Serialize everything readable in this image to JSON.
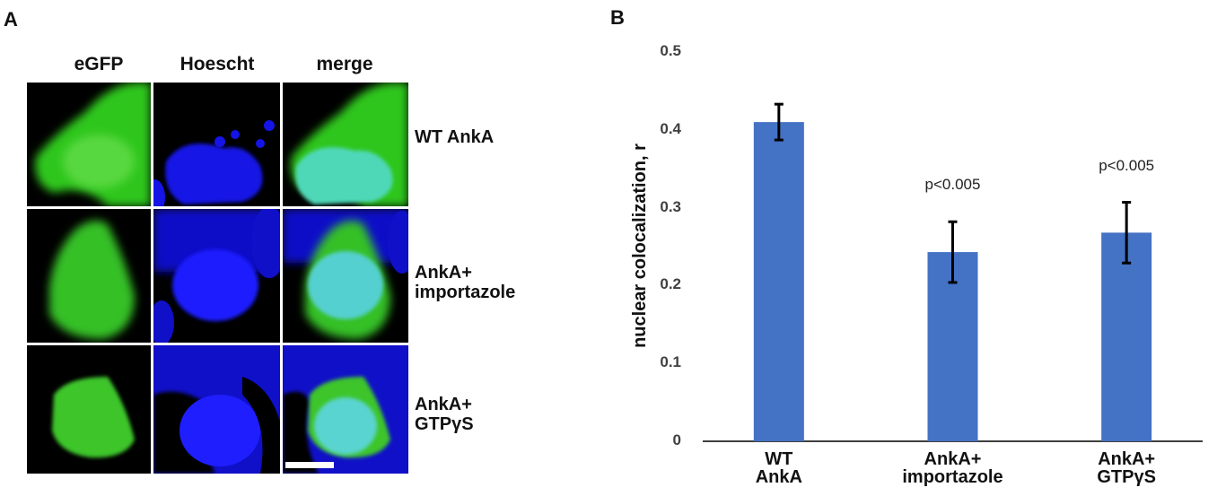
{
  "panels": {
    "a": "A",
    "b": "B"
  },
  "microscopy": {
    "columns": [
      "eGFP",
      "Hoescht",
      "merge"
    ],
    "rows": [
      "WT AnkA",
      "AnkA+\nimportazole",
      "AnkA+\nGTPγS"
    ]
  },
  "chart_data": {
    "type": "bar",
    "categories": [
      "WT\nAnkA",
      "AnkA+\nimportazole",
      "AnkA+\nGTPγS"
    ],
    "values": [
      0.41,
      0.243,
      0.268
    ],
    "errors": [
      0.023,
      0.039,
      0.039
    ],
    "significance": [
      null,
      "p<0.005",
      "p<0.005"
    ],
    "color": "#4472c4",
    "ylabel": "nuclear colocalization, r",
    "ylim": [
      0,
      0.5
    ],
    "yticks": [
      0,
      0.1,
      0.2,
      0.3,
      0.4,
      0.5
    ],
    "grid": false
  }
}
